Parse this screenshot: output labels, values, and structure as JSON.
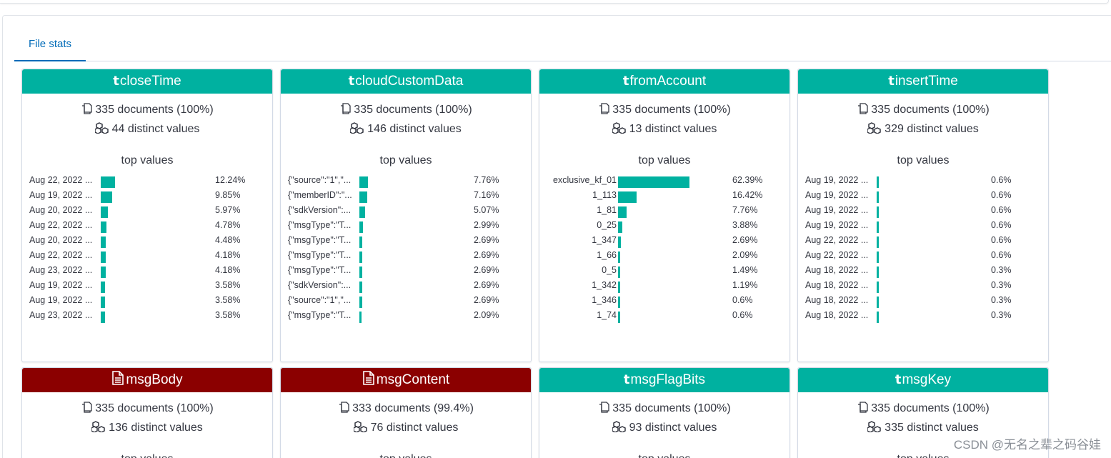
{
  "tabs": [
    {
      "label": "File stats"
    }
  ],
  "cards": [
    {
      "field": "closeTime",
      "type": "string",
      "documents": "335 documents (100%)",
      "distinct": "44 distinct values",
      "top_title": "top values",
      "values": [
        {
          "label": "Aug 22, 2022 ...",
          "pct": "12.24%",
          "frac": 0.1224
        },
        {
          "label": "Aug 19, 2022 ...",
          "pct": "9.85%",
          "frac": 0.0985
        },
        {
          "label": "Aug 20, 2022 ...",
          "pct": "5.97%",
          "frac": 0.0597
        },
        {
          "label": "Aug 22, 2022 ...",
          "pct": "4.78%",
          "frac": 0.0478
        },
        {
          "label": "Aug 20, 2022 ...",
          "pct": "4.48%",
          "frac": 0.0448
        },
        {
          "label": "Aug 22, 2022 ...",
          "pct": "4.18%",
          "frac": 0.0418
        },
        {
          "label": "Aug 23, 2022 ...",
          "pct": "4.18%",
          "frac": 0.0418
        },
        {
          "label": "Aug 19, 2022 ...",
          "pct": "3.58%",
          "frac": 0.0358
        },
        {
          "label": "Aug 19, 2022 ...",
          "pct": "3.58%",
          "frac": 0.0358
        },
        {
          "label": "Aug 23, 2022 ...",
          "pct": "3.58%",
          "frac": 0.0358
        }
      ]
    },
    {
      "field": "cloudCustomData",
      "type": "string",
      "documents": "335 documents (100%)",
      "distinct": "146 distinct values",
      "top_title": "top values",
      "values": [
        {
          "label": "{\"source\":\"1\",\"...",
          "pct": "7.76%",
          "frac": 0.0776
        },
        {
          "label": "{\"memberID\":\"...",
          "pct": "7.16%",
          "frac": 0.0716
        },
        {
          "label": "{\"sdkVersion\":...",
          "pct": "5.07%",
          "frac": 0.0507
        },
        {
          "label": "{\"msgType\":\"T...",
          "pct": "2.99%",
          "frac": 0.0299
        },
        {
          "label": "{\"msgType\":\"T...",
          "pct": "2.69%",
          "frac": 0.0269
        },
        {
          "label": "{\"msgType\":\"T...",
          "pct": "2.69%",
          "frac": 0.0269
        },
        {
          "label": "{\"msgType\":\"T...",
          "pct": "2.69%",
          "frac": 0.0269
        },
        {
          "label": "{\"sdkVersion\":...",
          "pct": "2.69%",
          "frac": 0.0269
        },
        {
          "label": "{\"source\":\"1\",\"...",
          "pct": "2.69%",
          "frac": 0.0269
        },
        {
          "label": "{\"msgType\":\"T...",
          "pct": "2.09%",
          "frac": 0.0209
        }
      ]
    },
    {
      "field": "fromAccount",
      "type": "string",
      "documents": "335 documents (100%)",
      "distinct": "13 distinct values",
      "top_title": "top values",
      "values": [
        {
          "label": "exclusive_kf_01",
          "pct": "62.39%",
          "frac": 0.6239
        },
        {
          "label": "1_113",
          "pct": "16.42%",
          "frac": 0.1642
        },
        {
          "label": "1_81",
          "pct": "7.76%",
          "frac": 0.0776
        },
        {
          "label": "0_25",
          "pct": "3.88%",
          "frac": 0.0388
        },
        {
          "label": "1_347",
          "pct": "2.69%",
          "frac": 0.0269
        },
        {
          "label": "1_66",
          "pct": "2.09%",
          "frac": 0.0209
        },
        {
          "label": "0_5",
          "pct": "1.49%",
          "frac": 0.0149
        },
        {
          "label": "1_342",
          "pct": "1.19%",
          "frac": 0.0119
        },
        {
          "label": "1_346",
          "pct": "0.6%",
          "frac": 0.006
        },
        {
          "label": "1_74",
          "pct": "0.6%",
          "frac": 0.006
        }
      ]
    },
    {
      "field": "insertTime",
      "type": "string",
      "documents": "335 documents (100%)",
      "distinct": "329 distinct values",
      "top_title": "top values",
      "values": [
        {
          "label": "Aug 19, 2022 ...",
          "pct": "0.6%",
          "frac": 0.006
        },
        {
          "label": "Aug 19, 2022 ...",
          "pct": "0.6%",
          "frac": 0.006
        },
        {
          "label": "Aug 19, 2022 ...",
          "pct": "0.6%",
          "frac": 0.006
        },
        {
          "label": "Aug 19, 2022 ...",
          "pct": "0.6%",
          "frac": 0.006
        },
        {
          "label": "Aug 22, 2022 ...",
          "pct": "0.6%",
          "frac": 0.006
        },
        {
          "label": "Aug 22, 2022 ...",
          "pct": "0.6%",
          "frac": 0.006
        },
        {
          "label": "Aug 18, 2022 ...",
          "pct": "0.3%",
          "frac": 0.003
        },
        {
          "label": "Aug 18, 2022 ...",
          "pct": "0.3%",
          "frac": 0.003
        },
        {
          "label": "Aug 18, 2022 ...",
          "pct": "0.3%",
          "frac": 0.003
        },
        {
          "label": "Aug 18, 2022 ...",
          "pct": "0.3%",
          "frac": 0.003
        }
      ]
    },
    {
      "field": "msgBody",
      "type": "text",
      "documents": "335 documents (100%)",
      "distinct": "136 distinct values",
      "top_title": "top values",
      "values": []
    },
    {
      "field": "msgContent",
      "type": "text",
      "documents": "333 documents (99.4%)",
      "distinct": "76 distinct values",
      "top_title": "top values",
      "values": []
    },
    {
      "field": "msgFlagBits",
      "type": "string",
      "documents": "335 documents (100%)",
      "distinct": "93 distinct values",
      "top_title": "top values",
      "values": []
    },
    {
      "field": "msgKey",
      "type": "string",
      "documents": "335 documents (100%)",
      "distinct": "335 distinct values",
      "top_title": "top values",
      "values": []
    }
  ],
  "type_icons": {
    "string": "t",
    "text": "document-icon"
  },
  "colors": {
    "string_header": "#00b1a0",
    "text_header": "#8b0000",
    "bar": "#00b1a0",
    "tab_active": "#006bb8"
  },
  "watermark": "CSDN @无名之辈之码谷娃"
}
